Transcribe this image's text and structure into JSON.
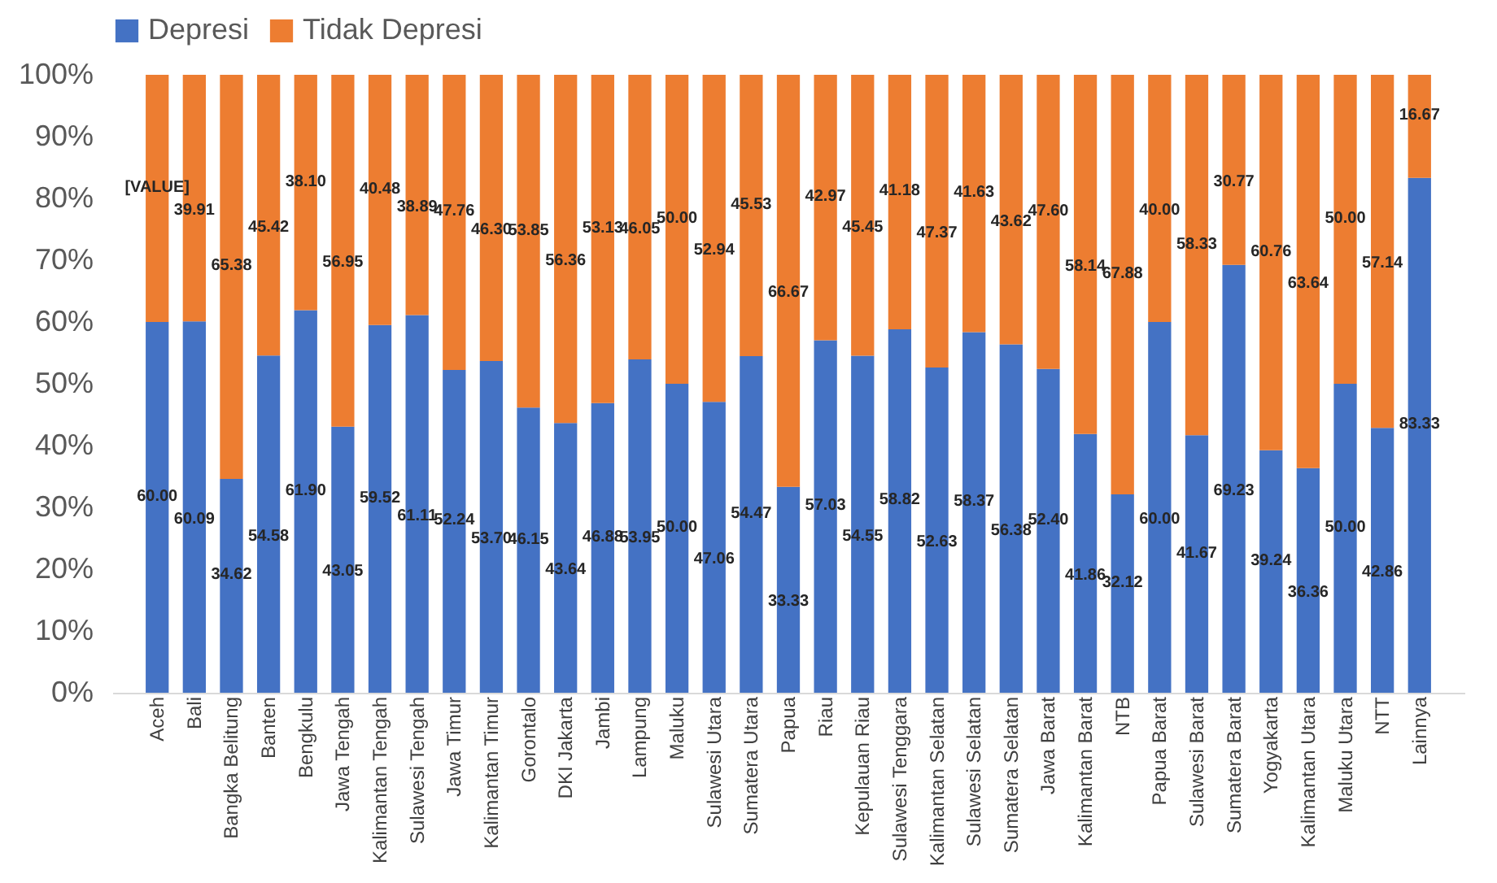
{
  "chart_data": {
    "type": "bar",
    "stacked": true,
    "legend": "top",
    "grid": false,
    "categories": [
      "Aceh",
      "Bali",
      "Bangka Belitung",
      "Banten",
      "Bengkulu",
      "Jawa Tengah",
      "Kalimantan Tengah",
      "Sulawesi  Tengah",
      "Jawa Timur",
      "Kalimantan Timur",
      "Gorontalo",
      "DKI Jakarta",
      "Jambi",
      "Lampung",
      "Maluku",
      "Sulawesi Utara",
      "Sumatera Utara",
      "Papua",
      "Riau",
      "Kepulauan Riau",
      "Sulawesi Tenggara",
      "Kalimantan Selatan",
      "Sulawesi Selatan",
      "Sumatera Selatan",
      "Jawa Barat",
      "Kalimantan Barat",
      "NTB",
      "Papua Barat",
      "Sulawesi Barat",
      "Sumatera Barat",
      "Yogyakarta",
      "Kalimantan Utara",
      "Maluku Utara",
      "NTT",
      "Lainnya"
    ],
    "series": [
      {
        "name": "Depresi",
        "color": "#4472c4",
        "values": [
          60.0,
          60.09,
          34.62,
          54.58,
          61.9,
          43.05,
          59.52,
          61.11,
          52.24,
          53.7,
          46.15,
          43.64,
          46.88,
          53.95,
          50.0,
          47.06,
          54.47,
          33.33,
          57.03,
          54.55,
          58.82,
          52.63,
          58.37,
          56.38,
          52.4,
          41.86,
          32.12,
          60.0,
          41.67,
          69.23,
          39.24,
          36.36,
          50.0,
          42.86,
          83.33
        ],
        "value_labels": [
          "60.00",
          "60.09",
          "34.62",
          "54.58",
          "61.90",
          "43.05",
          "59.52",
          "61.11",
          "52.24",
          "53.70",
          "46.15",
          "43.64",
          "46.88",
          "53.95",
          "50.00",
          "47.06",
          "54.47",
          "33.33",
          "57.03",
          "54.55",
          "58.82",
          "52.63",
          "58.37",
          "56.38",
          "52.40",
          "41.86",
          "32.12",
          "60.00",
          "41.67",
          "69.23",
          "39.24",
          "36.36",
          "50.00",
          "42.86",
          "83.33"
        ]
      },
      {
        "name": "Tidak Depresi",
        "color": "#ed7d31",
        "values": [
          40.0,
          39.91,
          65.38,
          45.42,
          38.1,
          56.95,
          40.48,
          38.89,
          47.76,
          46.3,
          53.85,
          56.36,
          53.13,
          46.05,
          50.0,
          52.94,
          45.53,
          66.67,
          42.97,
          45.45,
          41.18,
          47.37,
          41.63,
          43.62,
          47.6,
          58.14,
          67.88,
          40.0,
          58.33,
          30.77,
          60.76,
          63.64,
          50.0,
          57.14,
          16.67
        ],
        "value_labels": [
          "[VALUE]",
          "39.91",
          "65.38",
          "45.42",
          "38.10",
          "56.95",
          "40.48",
          "38.89",
          "47.76",
          "46.30",
          "53.85",
          "56.36",
          "53.13",
          "46.05",
          "50.00",
          "52.94",
          "45.53",
          "66.67",
          "42.97",
          "45.45",
          "41.18",
          "47.37",
          "41.63",
          "43.62",
          "47.60",
          "58.14",
          "67.88",
          "40.00",
          "58.33",
          "30.77",
          "60.76",
          "63.64",
          "50.00",
          "57.14",
          "16.67"
        ]
      }
    ],
    "ylim": [
      0,
      100
    ],
    "yticks": [
      {
        "value": 0,
        "label": "0%"
      },
      {
        "value": 10,
        "label": "10%"
      },
      {
        "value": 20,
        "label": "20%"
      },
      {
        "value": 30,
        "label": "30%"
      },
      {
        "value": 40,
        "label": "40%"
      },
      {
        "value": 50,
        "label": "50%"
      },
      {
        "value": 60,
        "label": "60%"
      },
      {
        "value": 70,
        "label": "70%"
      },
      {
        "value": 80,
        "label": "80%"
      },
      {
        "value": 90,
        "label": "90%"
      },
      {
        "value": 100,
        "label": "100%"
      }
    ]
  }
}
